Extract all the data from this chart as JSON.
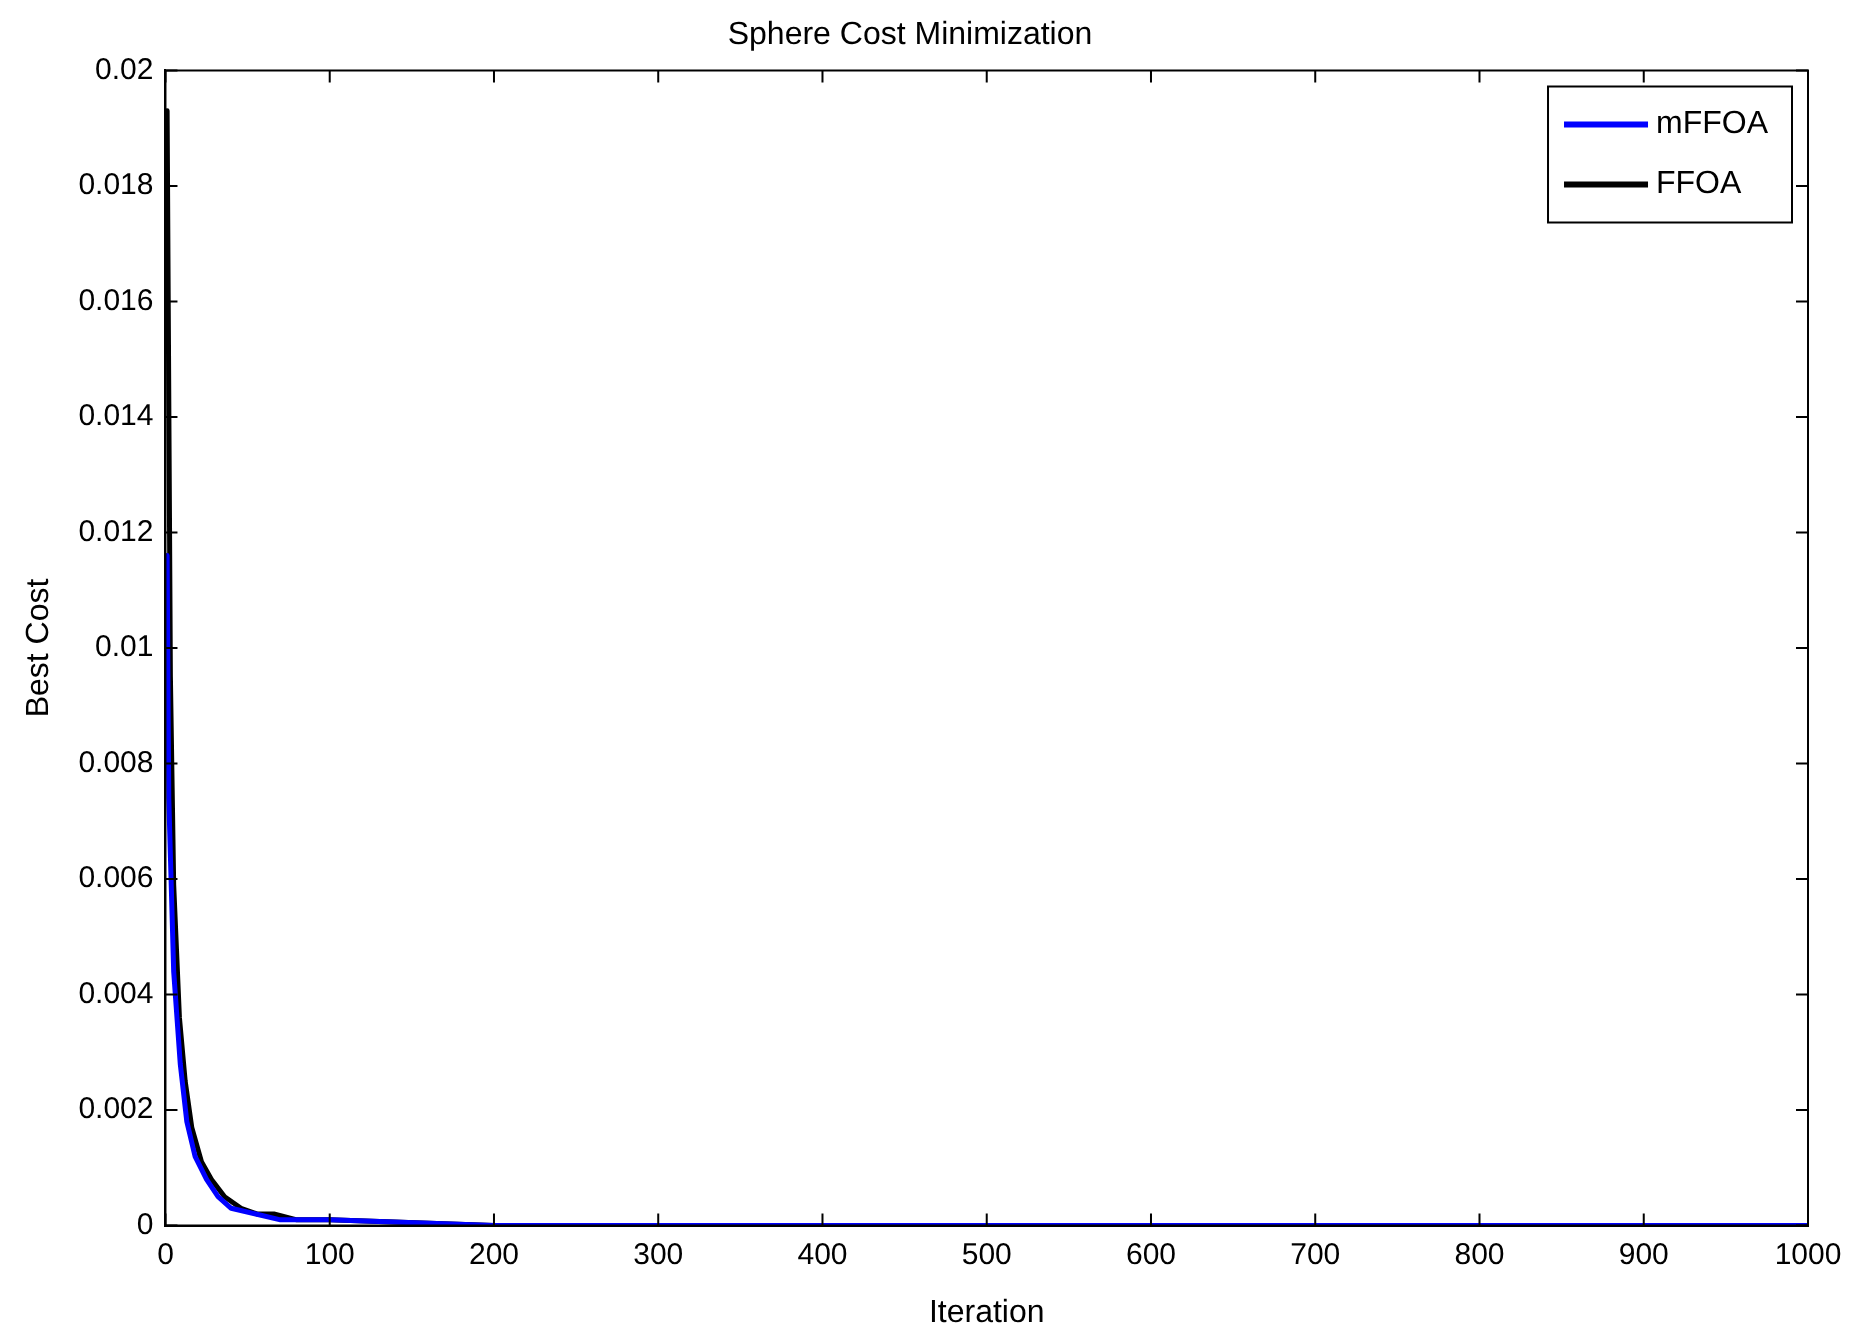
{
  "chart_data": {
    "type": "line",
    "title": "Sphere Cost Minimization",
    "xlabel": "Iteration",
    "ylabel": "Best Cost",
    "xlim": [
      0,
      1000
    ],
    "xticks": [
      0,
      100,
      200,
      300,
      400,
      500,
      600,
      700,
      800,
      900,
      1000
    ],
    "ylim": [
      0,
      0.02
    ],
    "yticks": [
      0,
      0.002,
      0.004,
      0.006,
      0.008,
      0.01,
      0.012,
      0.014,
      0.016,
      0.018,
      0.02
    ],
    "grid": false,
    "legend": "top right",
    "marker": "none",
    "line_style": "solid",
    "series": [
      {
        "name": "mFFOA",
        "color": "#0000ff",
        "x": [
          1,
          2,
          5,
          9,
          13,
          18,
          25,
          32,
          40,
          55,
          70,
          100,
          200,
          400,
          700,
          1000
        ],
        "values": [
          0.0116,
          0.0074,
          0.0044,
          0.0028,
          0.0018,
          0.0012,
          0.0008,
          0.0005,
          0.0003,
          0.0002,
          0.0001,
          0.0001,
          0,
          0,
          0,
          0
        ]
      },
      {
        "name": "FFOA",
        "color": "#000000",
        "x": [
          1,
          3,
          5,
          8.5,
          12,
          16,
          22,
          28,
          36,
          46,
          56,
          66,
          80,
          100,
          200,
          400,
          700,
          1000
        ],
        "values": [
          0.0193,
          0.0095,
          0.0059,
          0.0036,
          0.0025,
          0.0017,
          0.0011,
          0.0008,
          0.0005,
          0.0003,
          0.0002,
          0.0002,
          0.0001,
          0.0001,
          0,
          0,
          0,
          0
        ]
      }
    ]
  }
}
